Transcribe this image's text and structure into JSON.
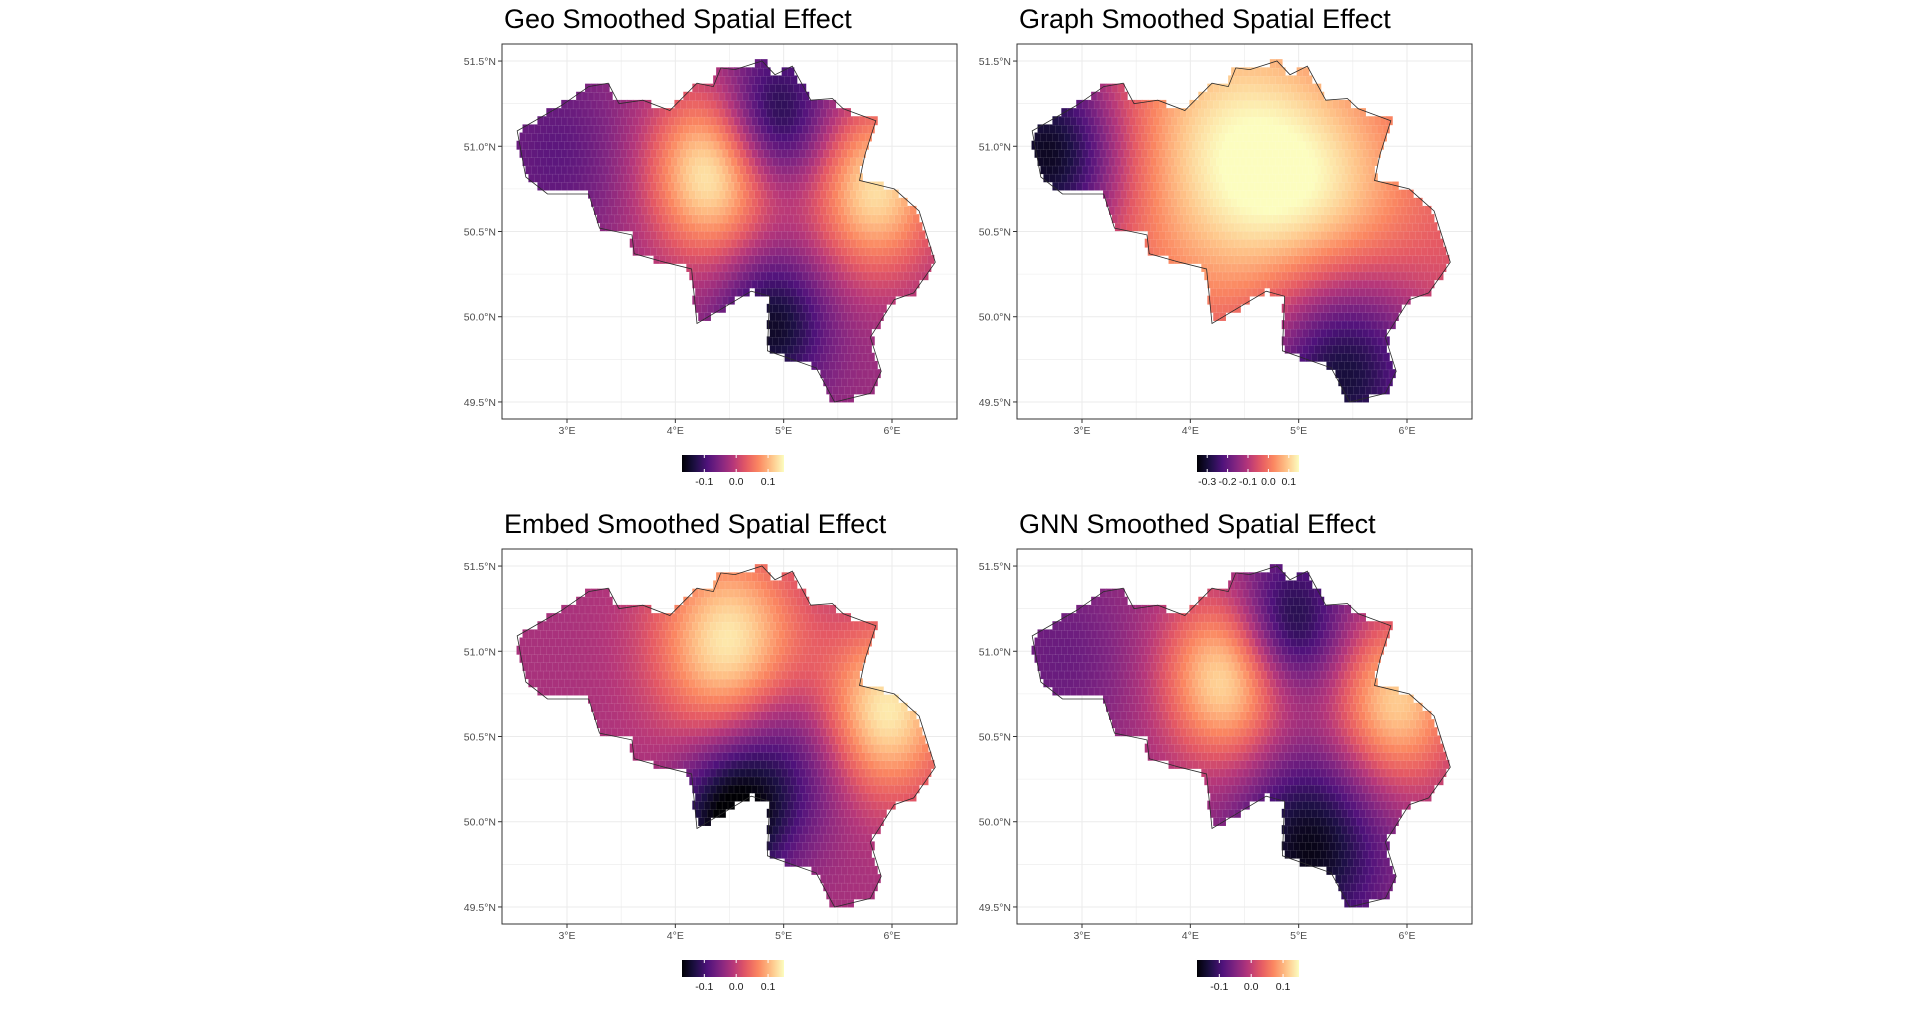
{
  "chart_data": [
    {
      "type": "heatmap",
      "title": "Geo Smoothed Spatial Effect",
      "x_ticks": [
        "3°E",
        "4°E",
        "5°E",
        "6°E"
      ],
      "y_ticks": [
        "51.5°N",
        "51.0°N",
        "50.5°N",
        "50.0°N",
        "49.5°N"
      ],
      "xlim": [
        2.4,
        6.6
      ],
      "ylim": [
        49.4,
        51.6
      ],
      "grid": true,
      "colorscale": "magma",
      "legend": {
        "position": "bottom",
        "range": [
          -0.17,
          0.15
        ],
        "ticks": [
          "-0.1",
          "0.0",
          "0.1"
        ],
        "tick_values": [
          -0.1,
          0.0,
          0.1
        ]
      },
      "field": [
        {
          "x": 4.35,
          "y": 50.85,
          "value": 0.15,
          "spread": 0.35
        },
        {
          "x": 5.85,
          "y": 50.75,
          "value": 0.13,
          "spread": 0.35
        },
        {
          "x": 4.9,
          "y": 51.15,
          "value": -0.16,
          "spread": 0.3
        },
        {
          "x": 4.9,
          "y": 49.95,
          "value": -0.15,
          "spread": 0.3
        },
        {
          "x": 2.9,
          "y": 50.95,
          "value": -0.08,
          "spread": 0.4
        }
      ],
      "base_value": -0.03
    },
    {
      "type": "heatmap",
      "title": "Graph Smoothed Spatial Effect",
      "x_ticks": [
        "3°E",
        "4°E",
        "5°E",
        "6°E"
      ],
      "y_ticks": [
        "51.5°N",
        "51.0°N",
        "50.5°N",
        "50.0°N",
        "49.5°N"
      ],
      "xlim": [
        2.4,
        6.6
      ],
      "ylim": [
        49.4,
        51.6
      ],
      "grid": true,
      "colorscale": "magma",
      "legend": {
        "position": "bottom",
        "range": [
          -0.35,
          0.15
        ],
        "ticks": [
          "-0.3",
          "-0.2",
          "-0.1",
          "0.0",
          "0.1"
        ],
        "tick_values": [
          -0.3,
          -0.2,
          -0.1,
          0.0,
          0.1
        ]
      },
      "field": [
        {
          "x": 4.4,
          "y": 50.95,
          "value": 0.13,
          "spread": 0.6
        },
        {
          "x": 5.3,
          "y": 50.65,
          "value": 0.07,
          "spread": 0.5
        },
        {
          "x": 2.7,
          "y": 50.95,
          "value": -0.33,
          "spread": 0.4
        },
        {
          "x": 5.4,
          "y": 49.7,
          "value": -0.32,
          "spread": 0.45
        }
      ],
      "base_value": -0.05
    },
    {
      "type": "heatmap",
      "title": "Embed Smoothed Spatial Effect",
      "x_ticks": [
        "3°E",
        "4°E",
        "5°E",
        "6°E"
      ],
      "y_ticks": [
        "51.5°N",
        "51.0°N",
        "50.5°N",
        "50.0°N",
        "49.5°N"
      ],
      "xlim": [
        2.4,
        6.6
      ],
      "ylim": [
        49.4,
        51.6
      ],
      "grid": true,
      "colorscale": "magma",
      "legend": {
        "position": "bottom",
        "range": [
          -0.17,
          0.15
        ],
        "ticks": [
          "-0.1",
          "0.0",
          "0.1"
        ],
        "tick_values": [
          -0.1,
          0.0,
          0.1
        ]
      },
      "field": [
        {
          "x": 4.5,
          "y": 51.05,
          "value": 0.14,
          "spread": 0.4
        },
        {
          "x": 5.95,
          "y": 50.65,
          "value": 0.14,
          "spread": 0.35
        },
        {
          "x": 4.5,
          "y": 50.0,
          "value": -0.17,
          "spread": 0.3
        },
        {
          "x": 5.0,
          "y": 50.35,
          "value": -0.1,
          "spread": 0.35
        }
      ],
      "base_value": -0.02
    },
    {
      "type": "heatmap",
      "title": "GNN Smoothed Spatial Effect",
      "x_ticks": [
        "3°E",
        "4°E",
        "5°E",
        "6°E"
      ],
      "y_ticks": [
        "51.5°N",
        "51.0°N",
        "50.5°N",
        "50.0°N",
        "49.5°N"
      ],
      "xlim": [
        2.4,
        6.6
      ],
      "ylim": [
        49.4,
        51.6
      ],
      "grid": true,
      "colorscale": "magma",
      "legend": {
        "position": "bottom",
        "range": [
          -0.17,
          0.15
        ],
        "ticks": [
          "-0.1",
          "0.0",
          "0.1"
        ],
        "tick_values": [
          -0.1,
          0.0,
          0.1
        ]
      },
      "field": [
        {
          "x": 4.35,
          "y": 50.85,
          "value": 0.14,
          "spread": 0.35
        },
        {
          "x": 5.9,
          "y": 50.7,
          "value": 0.12,
          "spread": 0.35
        },
        {
          "x": 4.9,
          "y": 51.15,
          "value": -0.16,
          "spread": 0.3
        },
        {
          "x": 5.1,
          "y": 49.85,
          "value": -0.16,
          "spread": 0.4
        },
        {
          "x": 2.8,
          "y": 50.95,
          "value": -0.07,
          "spread": 0.4
        }
      ],
      "base_value": -0.03
    }
  ],
  "colors": {
    "magma": [
      "#000004",
      "#1c1044",
      "#4f127b",
      "#812581",
      "#b5367a",
      "#e55964",
      "#fb8761",
      "#fec287",
      "#fcfdbf"
    ],
    "border": "#ffffff",
    "grid": "#ebebeb",
    "frame": "#333333"
  },
  "map_outline": [
    [
      2.54,
      51.09
    ],
    [
      2.95,
      51.24
    ],
    [
      3.2,
      51.35
    ],
    [
      3.38,
      51.37
    ],
    [
      3.48,
      51.25
    ],
    [
      3.7,
      51.27
    ],
    [
      3.95,
      51.21
    ],
    [
      4.2,
      51.37
    ],
    [
      4.35,
      51.35
    ],
    [
      4.42,
      51.46
    ],
    [
      4.55,
      51.45
    ],
    [
      4.8,
      51.5
    ],
    [
      4.92,
      51.42
    ],
    [
      5.08,
      51.47
    ],
    [
      5.25,
      51.27
    ],
    [
      5.45,
      51.28
    ],
    [
      5.55,
      51.22
    ],
    [
      5.85,
      51.15
    ],
    [
      5.75,
      50.95
    ],
    [
      5.7,
      50.8
    ],
    [
      6.02,
      50.75
    ],
    [
      6.25,
      50.62
    ],
    [
      6.4,
      50.32
    ],
    [
      6.2,
      50.14
    ],
    [
      6.02,
      50.1
    ],
    [
      5.8,
      49.88
    ],
    [
      5.9,
      49.68
    ],
    [
      5.8,
      49.55
    ],
    [
      5.47,
      49.5
    ],
    [
      5.3,
      49.7
    ],
    [
      4.85,
      49.8
    ],
    [
      4.87,
      50.12
    ],
    [
      4.7,
      50.15
    ],
    [
      4.2,
      49.96
    ],
    [
      4.15,
      50.28
    ],
    [
      3.9,
      50.32
    ],
    [
      3.62,
      50.37
    ],
    [
      3.6,
      50.48
    ],
    [
      3.3,
      50.52
    ],
    [
      3.2,
      50.72
    ],
    [
      2.92,
      50.72
    ],
    [
      2.82,
      50.72
    ],
    [
      2.62,
      50.82
    ]
  ]
}
